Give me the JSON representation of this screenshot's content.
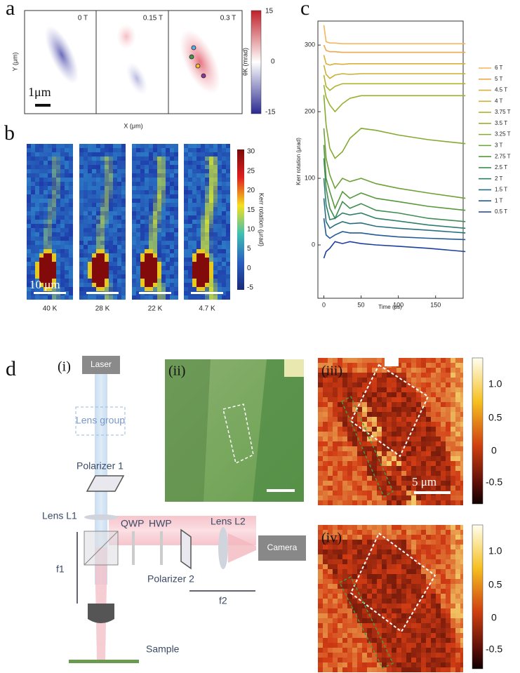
{
  "panels": {
    "a": {
      "letter": "a",
      "fields": [
        "0 T",
        "0.15 T",
        "0.3 T"
      ],
      "y_label": "Y (μm)",
      "x_label": "X (μm)",
      "scale_bar": "1μm",
      "colorbar_label": "θK (mrad)",
      "colorbar_ticks": [
        "15",
        "0",
        "-15"
      ]
    },
    "b": {
      "letter": "b",
      "temperatures": [
        "40 K",
        "28 K",
        "22 K",
        "4.7 K"
      ],
      "scale_bar": "10 μm",
      "colorbar_label": "Kerr rotation (μrad)",
      "colorbar_ticks": [
        "30",
        "25",
        "20",
        "15",
        "10",
        "5",
        "0",
        "-5"
      ]
    },
    "c": {
      "letter": "c"
    },
    "d": {
      "letter": "d",
      "subpanels": [
        "(i)",
        "(ii)",
        "(iii)",
        "(iv)"
      ],
      "components": {
        "laser": "Laser",
        "lens_group": "Lens group",
        "polarizer_1": "Polarizer 1",
        "lens_l1": "Lens L1",
        "qwp": "QWP",
        "hwp": "HWP",
        "lens_l2": "Lens L2",
        "camera": "Camera",
        "f1": "f1",
        "polarizer_2": "Polarizer 2",
        "f2": "f2",
        "sample": "Sample"
      },
      "scale_bar": "5 μm",
      "colorbar_iii": [
        "1.0",
        "0.5",
        "0",
        "-0.5"
      ],
      "colorbar_iv": [
        "1.0",
        "0.5",
        "0",
        "-0.5"
      ]
    }
  },
  "chart_data": {
    "type": "line",
    "x_label": "Time (ps)",
    "y_label": "Kerr rotation (μrad)",
    "x": [
      0,
      3,
      8,
      15,
      25,
      35,
      50,
      70,
      100,
      140,
      190
    ],
    "xlim": [
      -8,
      187
    ],
    "ylim": [
      -80,
      336
    ],
    "xticks": [
      0,
      50,
      100,
      150
    ],
    "yticks": [
      0,
      100,
      200,
      300
    ],
    "series": [
      {
        "name": "6 T",
        "color": "#f5b55a",
        "values": [
          330,
          305,
          303,
          303,
          302,
          302,
          302,
          302,
          302,
          302,
          302
        ]
      },
      {
        "name": "5 T",
        "color": "#eea94a",
        "values": [
          300,
          292,
          290,
          290,
          289,
          289,
          289,
          289,
          289,
          289,
          289
        ]
      },
      {
        "name": "4.5 T",
        "color": "#dcae3c",
        "values": [
          285,
          272,
          270,
          272,
          271,
          272,
          272,
          272,
          272,
          272,
          272
        ]
      },
      {
        "name": "4 T",
        "color": "#c8b135",
        "values": [
          270,
          256,
          250,
          255,
          257,
          256,
          257,
          257,
          257,
          257,
          257
        ]
      },
      {
        "name": "3.75 T",
        "color": "#b2b232",
        "values": [
          255,
          238,
          232,
          238,
          242,
          242,
          242,
          242,
          242,
          242,
          242
        ]
      },
      {
        "name": "3.5 T",
        "color": "#9cb030",
        "values": [
          240,
          222,
          210,
          200,
          212,
          220,
          224,
          224,
          224,
          224,
          224
        ]
      },
      {
        "name": "3.25 T",
        "color": "#84aa32",
        "values": [
          225,
          180,
          145,
          130,
          140,
          160,
          175,
          172,
          165,
          158,
          152
        ]
      },
      {
        "name": "3 T",
        "color": "#6ea236",
        "values": [
          175,
          130,
          105,
          85,
          100,
          95,
          100,
          92,
          85,
          78,
          70
        ]
      },
      {
        "name": "2.75 T",
        "color": "#56983c",
        "values": [
          150,
          100,
          80,
          55,
          80,
          70,
          78,
          70,
          65,
          58,
          52
        ]
      },
      {
        "name": "2.5 T",
        "color": "#3f8d50",
        "values": [
          130,
          85,
          55,
          40,
          65,
          55,
          62,
          52,
          48,
          40,
          35
        ]
      },
      {
        "name": "2 T",
        "color": "#2e7f6a",
        "values": [
          100,
          60,
          38,
          40,
          48,
          45,
          48,
          40,
          36,
          30,
          25
        ]
      },
      {
        "name": "1.5 T",
        "color": "#266f80",
        "values": [
          70,
          35,
          25,
          30,
          35,
          32,
          33,
          28,
          25,
          22,
          18
        ]
      },
      {
        "name": "1 T",
        "color": "#225a94",
        "values": [
          40,
          15,
          10,
          15,
          20,
          18,
          18,
          15,
          12,
          10,
          8
        ]
      },
      {
        "name": "0.5 T",
        "color": "#1c3f9e",
        "values": [
          -20,
          -10,
          -5,
          5,
          2,
          5,
          2,
          0,
          -2,
          -5,
          -10
        ]
      }
    ]
  }
}
